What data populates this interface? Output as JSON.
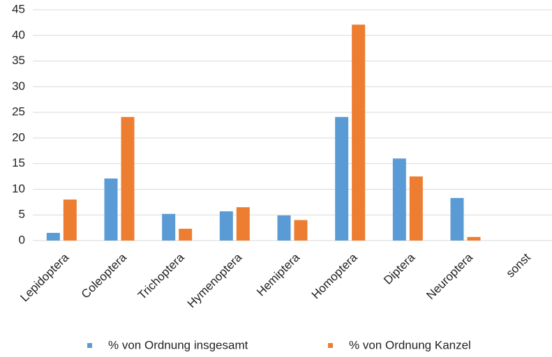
{
  "chart_data": {
    "type": "bar",
    "categories": [
      "Lepidoptera",
      "Coleoptera",
      "Trichoptera",
      "Hymenoptera",
      "Hemiptera",
      "Homoptera",
      "Diptera",
      "Neuroptera",
      "sonst"
    ],
    "series": [
      {
        "name": "% von Ordnung insgesamt",
        "color": "#5b9bd5",
        "values": [
          1.5,
          12.1,
          5.2,
          5.7,
          4.9,
          24.1,
          16.0,
          8.3,
          0
        ]
      },
      {
        "name": "% von Ordnung Kanzel",
        "color": "#ed7d31",
        "values": [
          8.0,
          24.1,
          2.3,
          6.5,
          4.0,
          42.1,
          12.5,
          0.7,
          0
        ]
      }
    ],
    "ylim": [
      0,
      45
    ],
    "yticks": [
      0,
      5,
      10,
      15,
      20,
      25,
      30,
      35,
      40,
      45
    ],
    "grid": true
  }
}
